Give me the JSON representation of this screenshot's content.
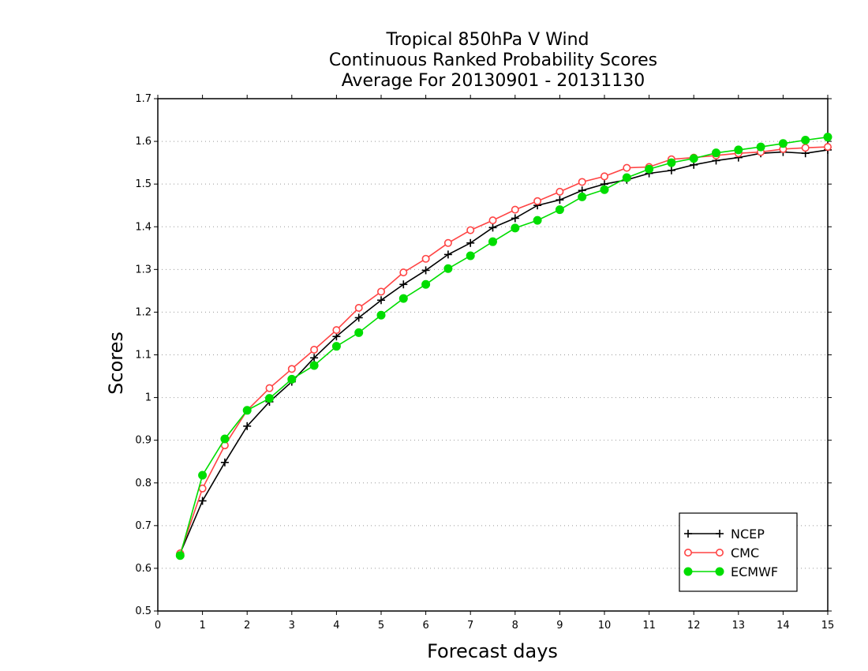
{
  "chart_data": {
    "type": "line",
    "title": [
      "Tropical 850hPa V Wind",
      "Continuous Ranked Probability Scores",
      "Average For 20130901 - 20131130"
    ],
    "xlabel": "Forecast days",
    "ylabel": "Scores",
    "xlim": [
      0,
      15
    ],
    "ylim": [
      0.5,
      1.7
    ],
    "xticks": [
      0,
      1,
      2,
      3,
      4,
      5,
      6,
      7,
      8,
      9,
      10,
      11,
      12,
      13,
      14,
      15
    ],
    "yticks": [
      0.5,
      0.6,
      0.7,
      0.8,
      0.9,
      1,
      1.1,
      1.2,
      1.3,
      1.4,
      1.5,
      1.6,
      1.7
    ],
    "ytick_labels": [
      "0.5",
      "0.6",
      "0.7",
      "0.8",
      "0.9",
      "1",
      "1.1",
      "1.2",
      "1.3",
      "1.4",
      "1.5",
      "1.6",
      "1.7"
    ],
    "grid": "horizontal-dotted",
    "legend_position": "bottom-right",
    "x": [
      0.5,
      1,
      1.5,
      2,
      2.5,
      3,
      3.5,
      4,
      4.5,
      5,
      5.5,
      6,
      6.5,
      7,
      7.5,
      8,
      8.5,
      9,
      9.5,
      10,
      10.5,
      11,
      11.5,
      12,
      12.5,
      13,
      13.5,
      14,
      14.5,
      15
    ],
    "series": [
      {
        "name": "NCEP",
        "color": "#000000",
        "marker": "plus",
        "values": [
          0.635,
          0.758,
          0.848,
          0.933,
          0.99,
          1.037,
          1.093,
          1.143,
          1.187,
          1.228,
          1.265,
          1.298,
          1.335,
          1.362,
          1.398,
          1.42,
          1.45,
          1.463,
          1.485,
          1.5,
          1.51,
          1.525,
          1.532,
          1.545,
          1.555,
          1.562,
          1.572,
          1.575,
          1.572,
          1.58
        ]
      },
      {
        "name": "CMC",
        "color": "#ff4444",
        "marker": "open-circle",
        "values": [
          0.635,
          0.787,
          0.888,
          0.97,
          1.022,
          1.067,
          1.112,
          1.158,
          1.21,
          1.248,
          1.293,
          1.325,
          1.362,
          1.392,
          1.415,
          1.44,
          1.46,
          1.482,
          1.505,
          1.518,
          1.538,
          1.54,
          1.558,
          1.562,
          1.567,
          1.572,
          1.575,
          1.582,
          1.585,
          1.587
        ]
      },
      {
        "name": "ECMWF",
        "color": "#00dd00",
        "marker": "filled-circle",
        "values": [
          0.63,
          0.818,
          0.903,
          0.97,
          0.998,
          1.043,
          1.075,
          1.12,
          1.152,
          1.193,
          1.232,
          1.265,
          1.302,
          1.332,
          1.365,
          1.397,
          1.415,
          1.44,
          1.47,
          1.487,
          1.515,
          1.535,
          1.55,
          1.56,
          1.573,
          1.58,
          1.587,
          1.595,
          1.603,
          1.61
        ]
      }
    ]
  }
}
